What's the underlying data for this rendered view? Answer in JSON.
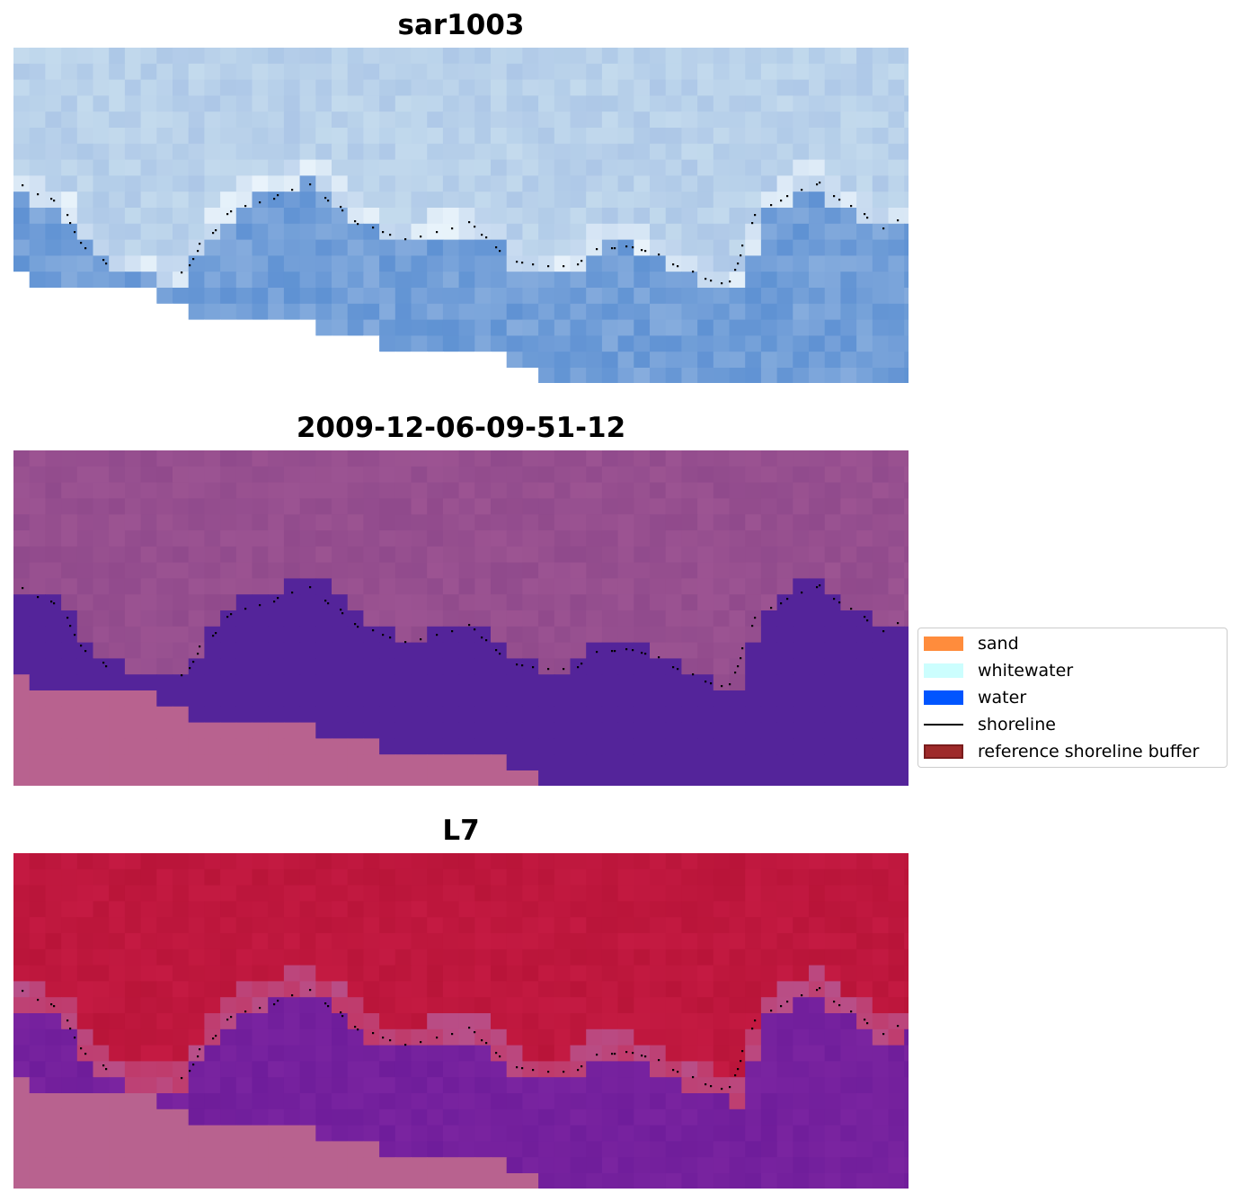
{
  "chart_data": [
    {
      "type": "heatmap",
      "title": "sar1003",
      "rendering": "true-color satellite image with shoreline points",
      "image_palette": {
        "light": "#cfe4f0",
        "mid": "#a9c4e6",
        "dark": "#5b8fd2"
      }
    },
    {
      "type": "heatmap",
      "title": "2009-12-06-09-51-12",
      "rendering": "classified image with shoreline points",
      "image_palette": {
        "land": "#904a8c",
        "water": "#54249a",
        "nodata": "#b8628f"
      }
    },
    {
      "type": "heatmap",
      "title": "L7",
      "rendering": "index image with shoreline points",
      "image_palette": {
        "land": "#c41a42",
        "water": "#7a24a0",
        "nodata": "#b8628f"
      }
    }
  ],
  "legend": {
    "position": "right",
    "items": [
      {
        "label": "sand",
        "kind": "patch",
        "color": "#ff8c3c",
        "edge": "#ff8c3c"
      },
      {
        "label": "whitewater",
        "kind": "patch",
        "color": "#ccfefe",
        "edge": "#ccfefe"
      },
      {
        "label": "water",
        "kind": "patch",
        "color": "#0055ff",
        "edge": "#0055ff"
      },
      {
        "label": "shoreline",
        "kind": "line",
        "color": "#000000"
      },
      {
        "label": "reference shoreline buffer",
        "kind": "patch",
        "color": "#9e2a2a",
        "edge": "#7a1c1c"
      }
    ]
  }
}
